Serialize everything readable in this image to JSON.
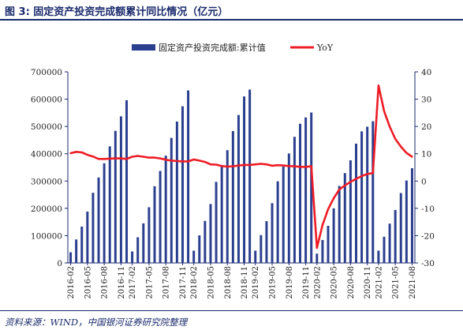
{
  "figure": {
    "title": "图 3:  固定资产投资完成额累计同比情况（亿元）",
    "source": "资料来源：WIND，中国银河证券研究院整理"
  },
  "colors": {
    "bar": "#2b3f8f",
    "line": "#ee1c25",
    "axis": "#1a2a6c",
    "text": "#222222"
  },
  "chart_data": {
    "type": "bar+line",
    "legend_position": "top",
    "grid": false,
    "categories": [
      "2016-02",
      "2016-03",
      "2016-04",
      "2016-05",
      "2016-06",
      "2016-07",
      "2016-08",
      "2016-09",
      "2016-10",
      "2016-11",
      "2016-12",
      "2017-02",
      "2017-03",
      "2017-04",
      "2017-05",
      "2017-06",
      "2017-07",
      "2017-08",
      "2017-09",
      "2017-10",
      "2017-11",
      "2017-12",
      "2018-02",
      "2018-03",
      "2018-04",
      "2018-05",
      "2018-06",
      "2018-07",
      "2018-08",
      "2018-09",
      "2018-10",
      "2018-11",
      "2018-12",
      "2019-02",
      "2019-03",
      "2019-04",
      "2019-05",
      "2019-06",
      "2019-07",
      "2019-08",
      "2019-09",
      "2019-10",
      "2019-11",
      "2019-12",
      "2020-02",
      "2020-03",
      "2020-04",
      "2020-05",
      "2020-06",
      "2020-07",
      "2020-08",
      "2020-09",
      "2020-10",
      "2020-11",
      "2020-12",
      "2021-02",
      "2021-03",
      "2021-04",
      "2021-05",
      "2021-06",
      "2021-07",
      "2021-08"
    ],
    "tick_labels": [
      "2016-02",
      "2016-05",
      "2016-08",
      "2016-11",
      "2017-02",
      "2017-05",
      "2017-08",
      "2017-11",
      "2018-02",
      "2018-05",
      "2018-08",
      "2018-11",
      "2019-02",
      "2019-05",
      "2019-08",
      "2019-11",
      "2020-02",
      "2020-05",
      "2020-08",
      "2020-11",
      "2021-02",
      "2021-05",
      "2021-08"
    ],
    "series": [
      {
        "name": "固定资产投资完成额:累计值",
        "type": "bar",
        "axis": "left",
        "values": [
          39000,
          86000,
          133000,
          188000,
          257000,
          313000,
          365000,
          427000,
          484000,
          537000,
          596000,
          42000,
          94000,
          145000,
          204000,
          281000,
          337000,
          393000,
          458000,
          518000,
          574000,
          632000,
          45000,
          101000,
          154000,
          216000,
          297000,
          358000,
          413000,
          483000,
          542000,
          610000,
          635000,
          45000,
          102000,
          153000,
          219000,
          299000,
          353000,
          401000,
          462000,
          510000,
          533000,
          551000,
          34000,
          84000,
          136000,
          200000,
          282000,
          329000,
          376000,
          437000,
          482000,
          499000,
          519000,
          45000,
          96000,
          144000,
          194000,
          256000,
          302000,
          347000
        ]
      },
      {
        "name": "YoY",
        "type": "line",
        "axis": "right",
        "values": [
          10.2,
          10.7,
          10.5,
          9.6,
          9.0,
          8.1,
          8.1,
          8.2,
          8.3,
          8.3,
          8.1,
          8.9,
          9.2,
          8.9,
          8.6,
          8.6,
          8.3,
          7.8,
          7.5,
          7.3,
          7.2,
          7.2,
          7.9,
          7.5,
          7.0,
          6.1,
          6.0,
          5.5,
          5.3,
          5.4,
          5.7,
          5.9,
          5.9,
          6.1,
          6.3,
          6.1,
          5.6,
          5.8,
          5.7,
          5.5,
          5.4,
          5.2,
          5.2,
          5.4,
          -24.5,
          -16.1,
          -10.3,
          -6.3,
          -3.1,
          -1.6,
          -0.3,
          0.8,
          1.8,
          2.6,
          2.9,
          35.0,
          25.6,
          19.9,
          15.4,
          12.6,
          10.3,
          8.9
        ]
      }
    ],
    "y_left": {
      "min": 0,
      "max": 700000,
      "ticks": [
        0,
        100000,
        200000,
        300000,
        400000,
        500000,
        600000,
        700000
      ]
    },
    "y_right": {
      "min": -30,
      "max": 40,
      "ticks": [
        -30,
        -20,
        -10,
        0,
        10,
        20,
        30,
        40
      ]
    }
  }
}
